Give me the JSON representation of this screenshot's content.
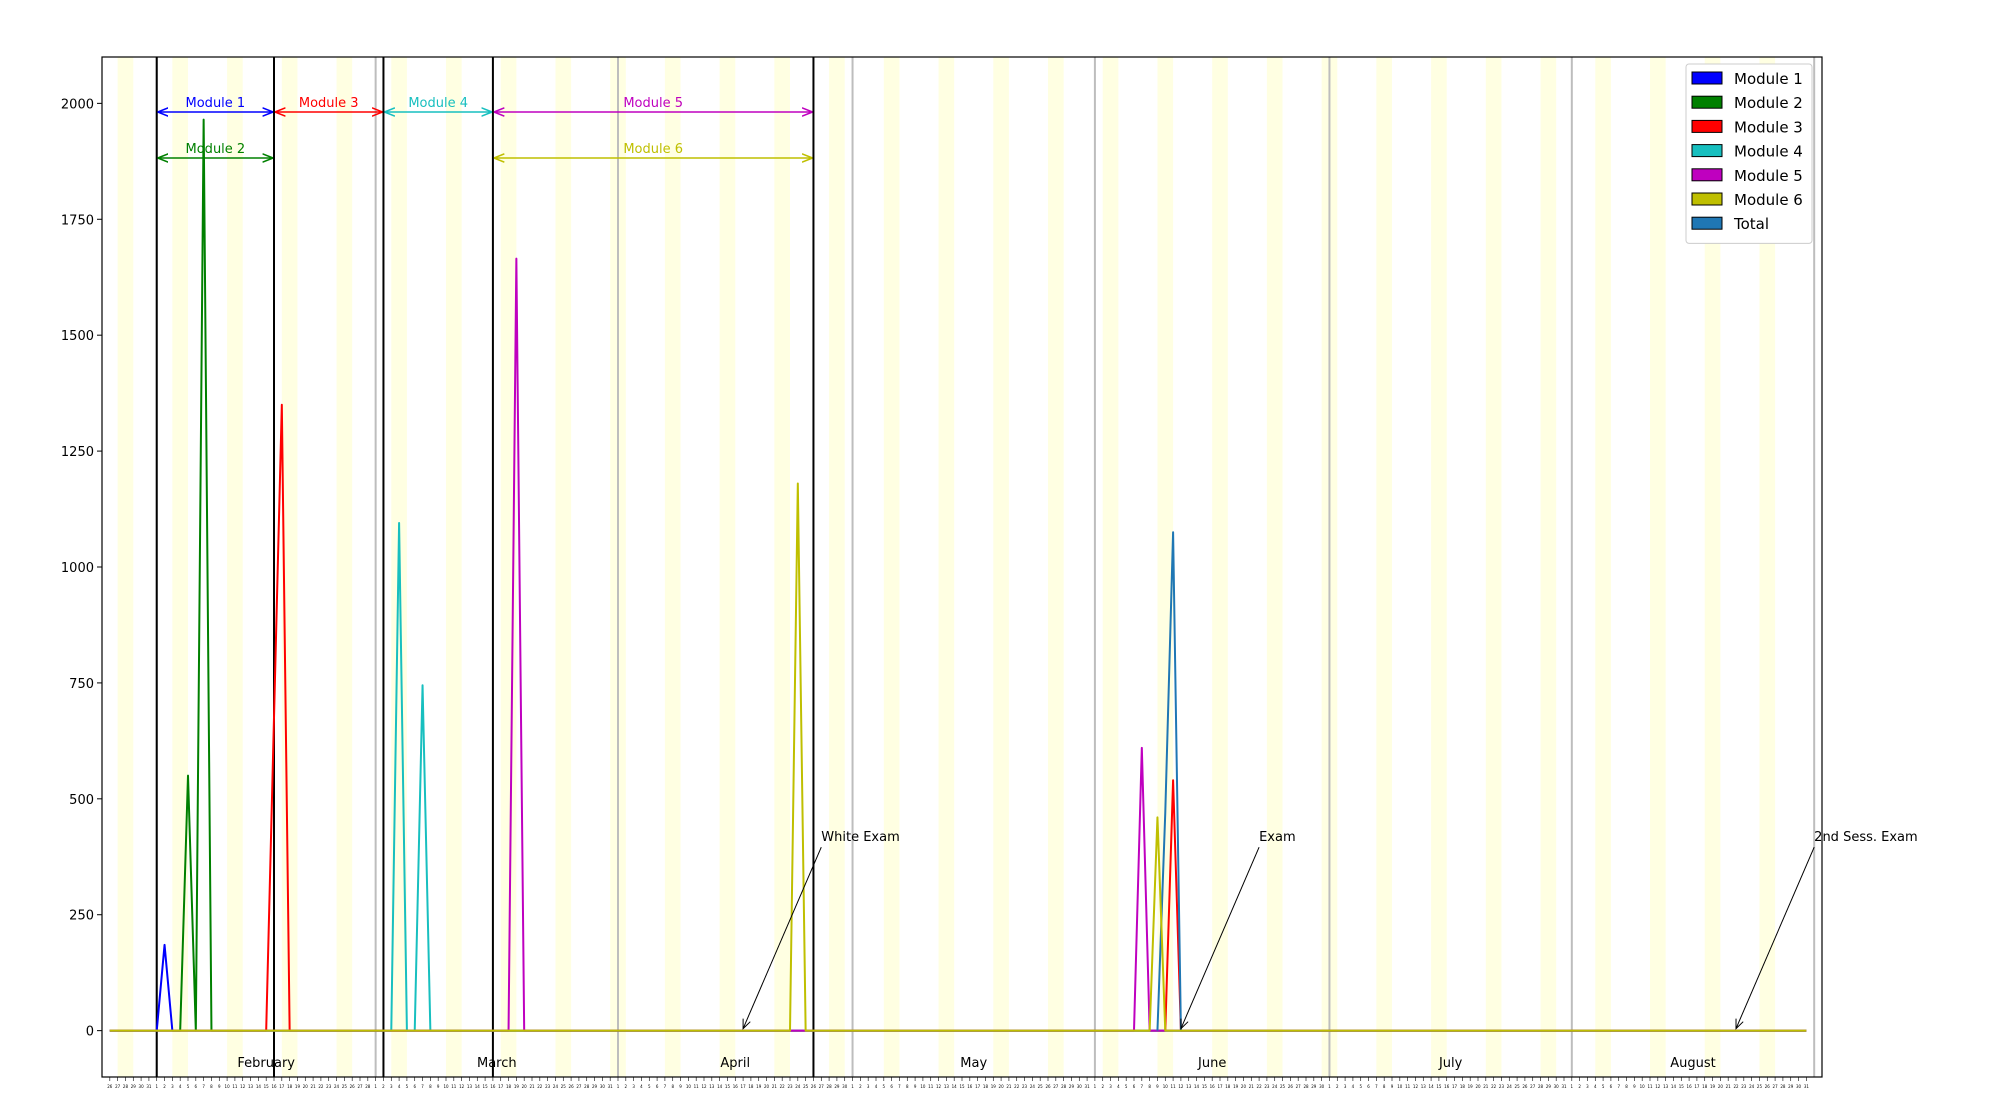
{
  "chart_data": {
    "type": "line",
    "title": "",
    "xlabel": "",
    "ylabel": "",
    "ylim": [
      -100,
      2100
    ],
    "xlim": [
      "2018-01-25",
      "2018-09-02"
    ],
    "y_ticks": [
      0,
      250,
      500,
      750,
      1000,
      1250,
      1500,
      1750,
      2000
    ],
    "grid": false,
    "legend_position": "upper-right",
    "legend": [
      {
        "label": "Module 1",
        "color": "#0000ff"
      },
      {
        "label": "Module 2",
        "color": "#008000"
      },
      {
        "label": "Module 3",
        "color": "#ff0000"
      },
      {
        "label": "Module 4",
        "color": "#17bfbf"
      },
      {
        "label": "Module 5",
        "color": "#bf00bf"
      },
      {
        "label": "Module 6",
        "color": "#bfbf00"
      },
      {
        "label": "Total",
        "color": "#1f77b4"
      }
    ],
    "months": [
      {
        "label": "February",
        "start": "2018-02-01",
        "end": "2018-03-01"
      },
      {
        "label": "March",
        "start": "2018-03-01",
        "end": "2018-04-01"
      },
      {
        "label": "April",
        "start": "2018-04-01",
        "end": "2018-05-01"
      },
      {
        "label": "May",
        "start": "2018-05-01",
        "end": "2018-06-01"
      },
      {
        "label": "June",
        "start": "2018-06-01",
        "end": "2018-07-01"
      },
      {
        "label": "July",
        "start": "2018-07-01",
        "end": "2018-08-01"
      },
      {
        "label": "August",
        "start": "2018-08-01",
        "end": "2018-09-01"
      }
    ],
    "module_periods": [
      {
        "label": "Module 1",
        "color": "#0000ff",
        "start": "2018-02-01",
        "end": "2018-02-16",
        "row": 1
      },
      {
        "label": "Module 2",
        "color": "#008000",
        "start": "2018-02-01",
        "end": "2018-02-16",
        "row": 2
      },
      {
        "label": "Module 3",
        "color": "#ff0000",
        "start": "2018-02-16",
        "end": "2018-03-02",
        "row": 1
      },
      {
        "label": "Module 4",
        "color": "#17bfbf",
        "start": "2018-03-02",
        "end": "2018-03-16",
        "row": 1
      },
      {
        "label": "Module 5",
        "color": "#bf00bf",
        "start": "2018-03-16",
        "end": "2018-04-26",
        "row": 1
      },
      {
        "label": "Module 6",
        "color": "#bfbf00",
        "start": "2018-03-16",
        "end": "2018-04-26",
        "row": 2
      }
    ],
    "annotations": [
      {
        "text": "White Exam",
        "target": {
          "x": "2018-04-17",
          "y": 0
        },
        "text_pos": {
          "x": "2018-04-27",
          "y": 400
        }
      },
      {
        "text": "Exam",
        "target": {
          "x": "2018-06-12",
          "y": 0
        },
        "text_pos": {
          "x": "2018-06-22",
          "y": 400
        }
      },
      {
        "text": "2nd Sess. Exam",
        "target": {
          "x": "2018-08-22",
          "y": 0
        },
        "text_pos": {
          "x": "2018-09-01",
          "y": 400
        }
      }
    ],
    "series": [
      {
        "name": "Module 1",
        "color": "#0000ff",
        "points": [
          [
            "2018-01-26",
            0
          ],
          [
            "2018-02-01",
            0
          ],
          [
            "2018-02-02",
            185
          ],
          [
            "2018-02-03",
            0
          ],
          [
            "2018-08-31",
            0
          ]
        ]
      },
      {
        "name": "Module 2",
        "color": "#008000",
        "points": [
          [
            "2018-01-26",
            0
          ],
          [
            "2018-02-04",
            0
          ],
          [
            "2018-02-05",
            550
          ],
          [
            "2018-02-06",
            0
          ],
          [
            "2018-02-07",
            1965
          ],
          [
            "2018-02-08",
            0
          ],
          [
            "2018-08-31",
            0
          ]
        ]
      },
      {
        "name": "Module 3",
        "color": "#ff0000",
        "points": [
          [
            "2018-01-26",
            0
          ],
          [
            "2018-02-15",
            0
          ],
          [
            "2018-02-17",
            1350
          ],
          [
            "2018-02-18",
            0
          ],
          [
            "2018-06-10",
            0
          ],
          [
            "2018-06-11",
            540
          ],
          [
            "2018-06-12",
            0
          ],
          [
            "2018-08-31",
            0
          ]
        ]
      },
      {
        "name": "Module 4",
        "color": "#17bfbf",
        "points": [
          [
            "2018-01-26",
            0
          ],
          [
            "2018-03-03",
            0
          ],
          [
            "2018-03-04",
            1095
          ],
          [
            "2018-03-05",
            0
          ],
          [
            "2018-03-06",
            0
          ],
          [
            "2018-03-07",
            745
          ],
          [
            "2018-03-08",
            0
          ],
          [
            "2018-08-31",
            0
          ]
        ]
      },
      {
        "name": "Module 5",
        "color": "#bf00bf",
        "points": [
          [
            "2018-01-26",
            0
          ],
          [
            "2018-03-18",
            0
          ],
          [
            "2018-03-19",
            1665
          ],
          [
            "2018-03-20",
            0
          ],
          [
            "2018-06-06",
            0
          ],
          [
            "2018-06-07",
            610
          ],
          [
            "2018-06-08",
            0
          ],
          [
            "2018-08-31",
            0
          ]
        ]
      },
      {
        "name": "Total",
        "color": "#1f77b4",
        "points": [
          [
            "2018-06-09",
            0
          ],
          [
            "2018-06-10",
            470
          ],
          [
            "2018-06-11",
            1075
          ],
          [
            "2018-06-12",
            0
          ]
        ]
      },
      {
        "name": "Module 6",
        "color": "#bfbf00",
        "points": [
          [
            "2018-01-26",
            0
          ],
          [
            "2018-04-23",
            0
          ],
          [
            "2018-04-24",
            1180
          ],
          [
            "2018-04-25",
            0
          ],
          [
            "2018-06-08",
            0
          ],
          [
            "2018-06-09",
            460
          ],
          [
            "2018-06-10",
            0
          ],
          [
            "2018-08-31",
            0
          ]
        ]
      }
    ]
  }
}
